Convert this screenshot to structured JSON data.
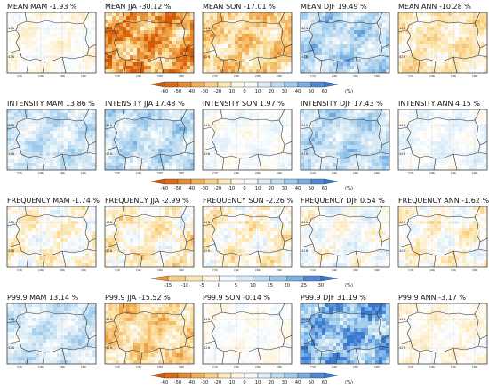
{
  "chart_data": {
    "type": "heatmap",
    "lon_ticks": [
      "22E",
      "24E",
      "26E",
      "28E"
    ],
    "lat_ticks": [
      "44N",
      "42N"
    ],
    "colors": {
      "neg_strong": "#d65a07",
      "neg_mid": "#f0a040",
      "neg_light": "#fbe0a0",
      "zero": "#ffffff",
      "pos_light": "#cfe6f5",
      "pos_mid": "#8fc3ea",
      "pos_strong": "#3b78d0",
      "border": "#333333"
    },
    "rows": [
      {
        "metric": "MEAN",
        "panels": [
          {
            "title": "MEAN MAM -1.93 %",
            "season": "MAM",
            "value": -1.93
          },
          {
            "title": "MEAN JJA -30.12 %",
            "season": "JJA",
            "value": -30.12
          },
          {
            "title": "MEAN SON -17.01 %",
            "season": "SON",
            "value": -17.01
          },
          {
            "title": "MEAN DJF 19.49 %",
            "season": "DJF",
            "value": 19.49
          },
          {
            "title": "MEAN ANN -10.28 %",
            "season": "ANN",
            "value": -10.28
          }
        ],
        "colorbar": {
          "ticks": [
            "-60",
            "-50",
            "-40",
            "-30",
            "-20",
            "-10",
            "0",
            "10",
            "20",
            "30",
            "40",
            "50",
            "60"
          ],
          "min": -60,
          "max": 60,
          "unit": "(%)"
        }
      },
      {
        "metric": "INTENSITY",
        "panels": [
          {
            "title": "INTENSITY MAM 13.86 %",
            "season": "MAM",
            "value": 13.86
          },
          {
            "title": "INTENSITY JJA 17.48 %",
            "season": "JJA",
            "value": 17.48
          },
          {
            "title": "INTENSITY SON 1.97 %",
            "season": "SON",
            "value": 1.97
          },
          {
            "title": "INTENSITY DJF 17.43 %",
            "season": "DJF",
            "value": 17.43
          },
          {
            "title": "INTENSITY ANN 4.15 %",
            "season": "ANN",
            "value": 4.15
          }
        ],
        "colorbar": {
          "ticks": [
            "-60",
            "-50",
            "-40",
            "-30",
            "-20",
            "-10",
            "0",
            "10",
            "20",
            "30",
            "40",
            "50",
            "60"
          ],
          "min": -60,
          "max": 60,
          "unit": "(%)"
        }
      },
      {
        "metric": "FREQUENCY",
        "panels": [
          {
            "title": "FREQUENCY MAM -1.74 %",
            "season": "MAM",
            "value": -1.74
          },
          {
            "title": "FREQUENCY JJA -2.99 %",
            "season": "JJA",
            "value": -2.99
          },
          {
            "title": "FREQUENCY SON -2.26 %",
            "season": "SON",
            "value": -2.26
          },
          {
            "title": "FREQUENCY DJF 0.54 %",
            "season": "DJF",
            "value": 0.54
          },
          {
            "title": "FREQUENCY ANN -1.62 %",
            "season": "ANN",
            "value": -1.62
          }
        ],
        "colorbar": {
          "ticks": [
            "-15",
            "-10",
            "-5",
            "0",
            "5",
            "10",
            "15",
            "20",
            "25",
            "30"
          ],
          "min": -15,
          "max": 30,
          "unit": "(%)"
        }
      },
      {
        "metric": "P99.9",
        "panels": [
          {
            "title": "P99.9 MAM 13.14 %",
            "season": "MAM",
            "value": 13.14
          },
          {
            "title": "P99.9 JJA -15.52 %",
            "season": "JJA",
            "value": -15.52
          },
          {
            "title": "P99.9 SON -0.14 %",
            "season": "SON",
            "value": -0.14
          },
          {
            "title": "P99.9 DJF 31.19 %",
            "season": "DJF",
            "value": 31.19
          },
          {
            "title": "P99.9 ANN -3.17 %",
            "season": "ANN",
            "value": -3.17
          }
        ],
        "colorbar": {
          "ticks": [
            "-60",
            "-50",
            "-40",
            "-30",
            "-20",
            "-10",
            "0",
            "10",
            "20",
            "30",
            "40",
            "50",
            "60"
          ],
          "min": -60,
          "max": 60,
          "unit": "(%)"
        }
      }
    ]
  }
}
